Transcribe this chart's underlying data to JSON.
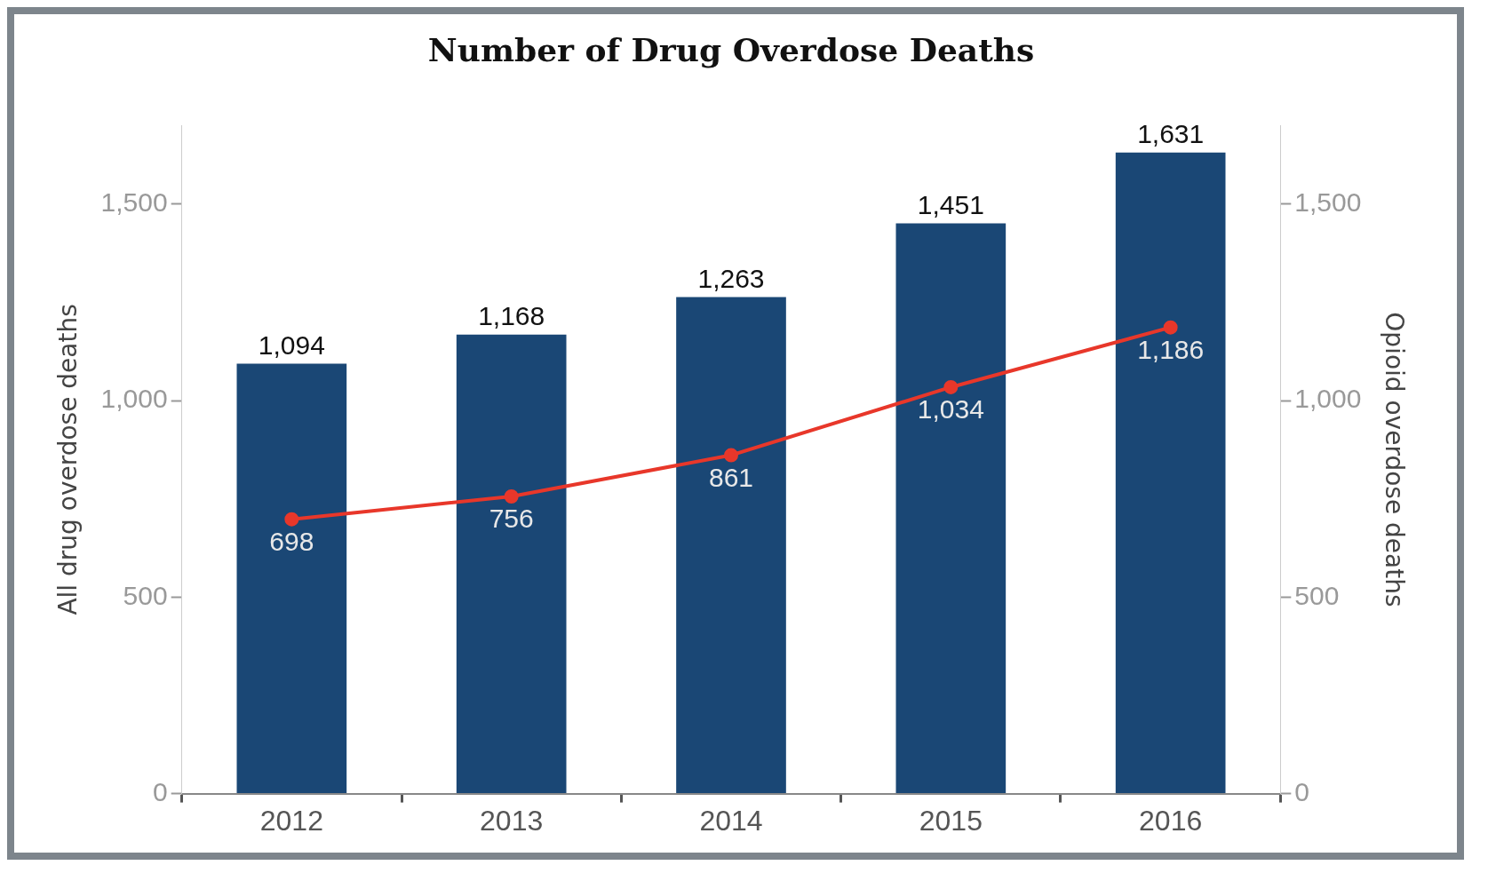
{
  "chart_data": {
    "type": "bar",
    "title": "Number of Drug Overdose Deaths",
    "ylabel": "All drug overdose deaths",
    "y2label": "Opioid overdose deaths",
    "categories": [
      "2012",
      "2013",
      "2014",
      "2015",
      "2016"
    ],
    "series": [
      {
        "color": "#1a4775",
        "values": [
          1094,
          1168,
          1263,
          1451,
          1631
        ],
        "value_labels": [
          "1,094",
          "1,168",
          "1,263",
          "1,451",
          "1,631"
        ]
      },
      {
        "type": "line",
        "axis": "y2",
        "color": "#e8372a",
        "values": [
          698,
          756,
          861,
          1034,
          1186
        ],
        "value_labels": [
          "698",
          "756",
          "861",
          "1,034",
          "1,186"
        ]
      }
    ],
    "ylim": [
      0,
      1700
    ],
    "yticks": [
      0,
      500,
      {
        "value": 1000,
        "label": "1,000"
      },
      {
        "value": 1500,
        "label": "1,500"
      }
    ],
    "y2lim": [
      0,
      1700
    ],
    "y2ticks": [
      0,
      500,
      {
        "value": 1000,
        "label": "1,000"
      },
      {
        "value": 1500,
        "label": "1,500"
      }
    ],
    "data_labels": true,
    "grid": false,
    "legend": false,
    "marker": "circle",
    "line_style": "solid"
  }
}
